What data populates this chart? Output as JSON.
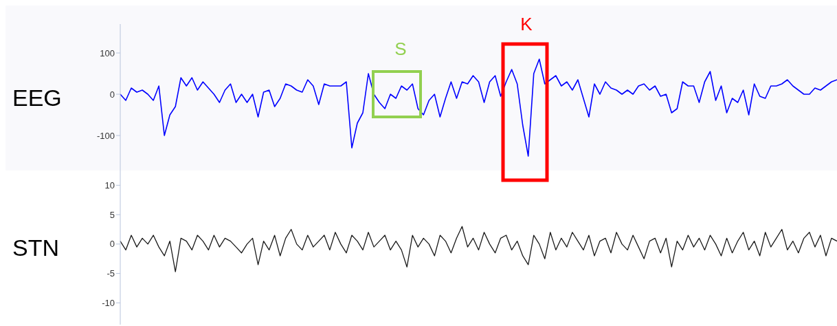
{
  "chart_data": [
    {
      "type": "line",
      "ylabel": "EEG",
      "annotations": [
        "S",
        "K"
      ],
      "tick_labels": "y",
      "ylim": [
        -185,
        170
      ],
      "yticks": [
        -100,
        0,
        100
      ],
      "categories": [
        null,
        null,
        null,
        null,
        null,
        null,
        null,
        null,
        null,
        null,
        null,
        null,
        null,
        null,
        null,
        null,
        null,
        null,
        null,
        null,
        null,
        null,
        null,
        null,
        null,
        null,
        null,
        null,
        null,
        null,
        null,
        null,
        null,
        null,
        null,
        null,
        null,
        null,
        null,
        null,
        null,
        null,
        null,
        null,
        null,
        null,
        null,
        null,
        null,
        null,
        null,
        null,
        null,
        null,
        null,
        null,
        null,
        null,
        null,
        null,
        null,
        null,
        null,
        null,
        null,
        null,
        null,
        null,
        null,
        null,
        null,
        null,
        null,
        null,
        null,
        null,
        null,
        null,
        null,
        null,
        null,
        null,
        null,
        null,
        null,
        null,
        null,
        null,
        null,
        null,
        null,
        null,
        null,
        null,
        null,
        null,
        null,
        null,
        null,
        null,
        null,
        null,
        null,
        null,
        null,
        null,
        null,
        null,
        null,
        null,
        null,
        null,
        null,
        null,
        null,
        null,
        null,
        null,
        null,
        null,
        null,
        null,
        null,
        null,
        null,
        null,
        null,
        null,
        null,
        null,
        null
      ],
      "series": [
        {
          "color": "#0000ff",
          "values": [
            0,
            -15,
            15,
            5,
            10,
            0,
            -15,
            20,
            -100,
            -50,
            -30,
            40,
            20,
            40,
            10,
            30,
            15,
            0,
            -20,
            10,
            25,
            -20,
            0,
            -20,
            0,
            -55,
            5,
            10,
            -30,
            -10,
            25,
            20,
            10,
            5,
            35,
            20,
            -25,
            25,
            20,
            20,
            20,
            30,
            -130,
            -70,
            -45,
            50,
            0,
            -20,
            -35,
            0,
            -10,
            20,
            10,
            25,
            -35,
            -50,
            -15,
            0,
            -55,
            -10,
            30,
            -10,
            30,
            25,
            45,
            30,
            -20,
            30,
            45,
            -5,
            30,
            60,
            25,
            -75,
            -150,
            50,
            85,
            25,
            35,
            45,
            20,
            30,
            10,
            35,
            -10,
            -55,
            25,
            0,
            30,
            15,
            10,
            0,
            10,
            0,
            20,
            25,
            10,
            20,
            -5,
            0,
            -45,
            -35,
            30,
            20,
            20,
            -20,
            30,
            55,
            -15,
            20,
            -45,
            -10,
            -20,
            10,
            -50,
            25,
            -5,
            -10,
            20,
            20,
            25,
            35,
            20,
            10,
            0,
            0,
            15,
            10,
            20,
            30,
            35
          ]
        }
      ]
    },
    {
      "type": "line",
      "ylabel": "STN",
      "tick_labels": "y",
      "ylim": [
        -13.7,
        12.5
      ],
      "yticks": [
        -10,
        -5,
        0,
        5,
        10
      ],
      "categories": [
        null,
        null,
        null,
        null,
        null,
        null,
        null,
        null,
        null,
        null,
        null,
        null,
        null,
        null,
        null,
        null,
        null,
        null,
        null,
        null,
        null,
        null,
        null,
        null,
        null,
        null,
        null,
        null,
        null,
        null,
        null,
        null,
        null,
        null,
        null,
        null,
        null,
        null,
        null,
        null,
        null,
        null,
        null,
        null,
        null,
        null,
        null,
        null,
        null,
        null,
        null,
        null,
        null,
        null,
        null,
        null,
        null,
        null,
        null,
        null,
        null,
        null,
        null,
        null,
        null,
        null,
        null,
        null,
        null,
        null,
        null,
        null,
        null,
        null,
        null,
        null,
        null,
        null,
        null,
        null,
        null,
        null,
        null,
        null,
        null,
        null,
        null,
        null,
        null,
        null,
        null,
        null,
        null,
        null,
        null,
        null,
        null,
        null,
        null,
        null,
        null,
        null,
        null,
        null,
        null,
        null,
        null,
        null,
        null,
        null,
        null,
        null,
        null,
        null,
        null,
        null,
        null,
        null,
        null,
        null,
        null,
        null,
        null,
        null,
        null,
        null,
        null,
        null,
        null,
        null,
        null
      ],
      "series": [
        {
          "color": "#1a1a1a",
          "values": [
            0.5,
            -1,
            1.5,
            -0.5,
            1,
            0,
            1.5,
            -0.5,
            -2,
            0.5,
            -4.7,
            1,
            0.5,
            -1,
            1.5,
            0.5,
            -1,
            1.5,
            -0.5,
            1,
            0.5,
            -0.5,
            -1.5,
            0,
            1,
            -3.5,
            0.5,
            -1,
            1.5,
            -2,
            1,
            2.5,
            0,
            -1,
            1.5,
            -0.5,
            0.5,
            1.5,
            -1,
            2,
            0,
            -1.5,
            1.5,
            0.5,
            -1,
            2,
            -0.5,
            0.5,
            1.5,
            -1,
            0.5,
            -1,
            -3.9,
            1.5,
            -0.5,
            1,
            0,
            -2,
            1.5,
            0.5,
            -1.5,
            1,
            3,
            -0.5,
            1,
            -1,
            2,
            0,
            -1.5,
            1,
            1.5,
            -1,
            0.5,
            -2,
            -3.5,
            1.5,
            0,
            -2.5,
            2,
            -1,
            1,
            -0.5,
            2,
            0.5,
            -1,
            1.5,
            -2,
            0.5,
            1,
            -1.5,
            2,
            0,
            -1,
            1.5,
            -0.5,
            -2.5,
            0.5,
            1,
            -1.5,
            1,
            -3.9,
            0.5,
            -1,
            1.5,
            -0.5,
            1,
            -1,
            1.5,
            0,
            -2,
            1,
            -1.5,
            0.5,
            2,
            -1,
            0.5,
            -2,
            2,
            -0.5,
            1,
            2.5,
            -1,
            0.5,
            -1.5,
            1,
            2,
            -0.5,
            1.5,
            -2,
            1,
            0.5
          ]
        }
      ]
    }
  ]
}
